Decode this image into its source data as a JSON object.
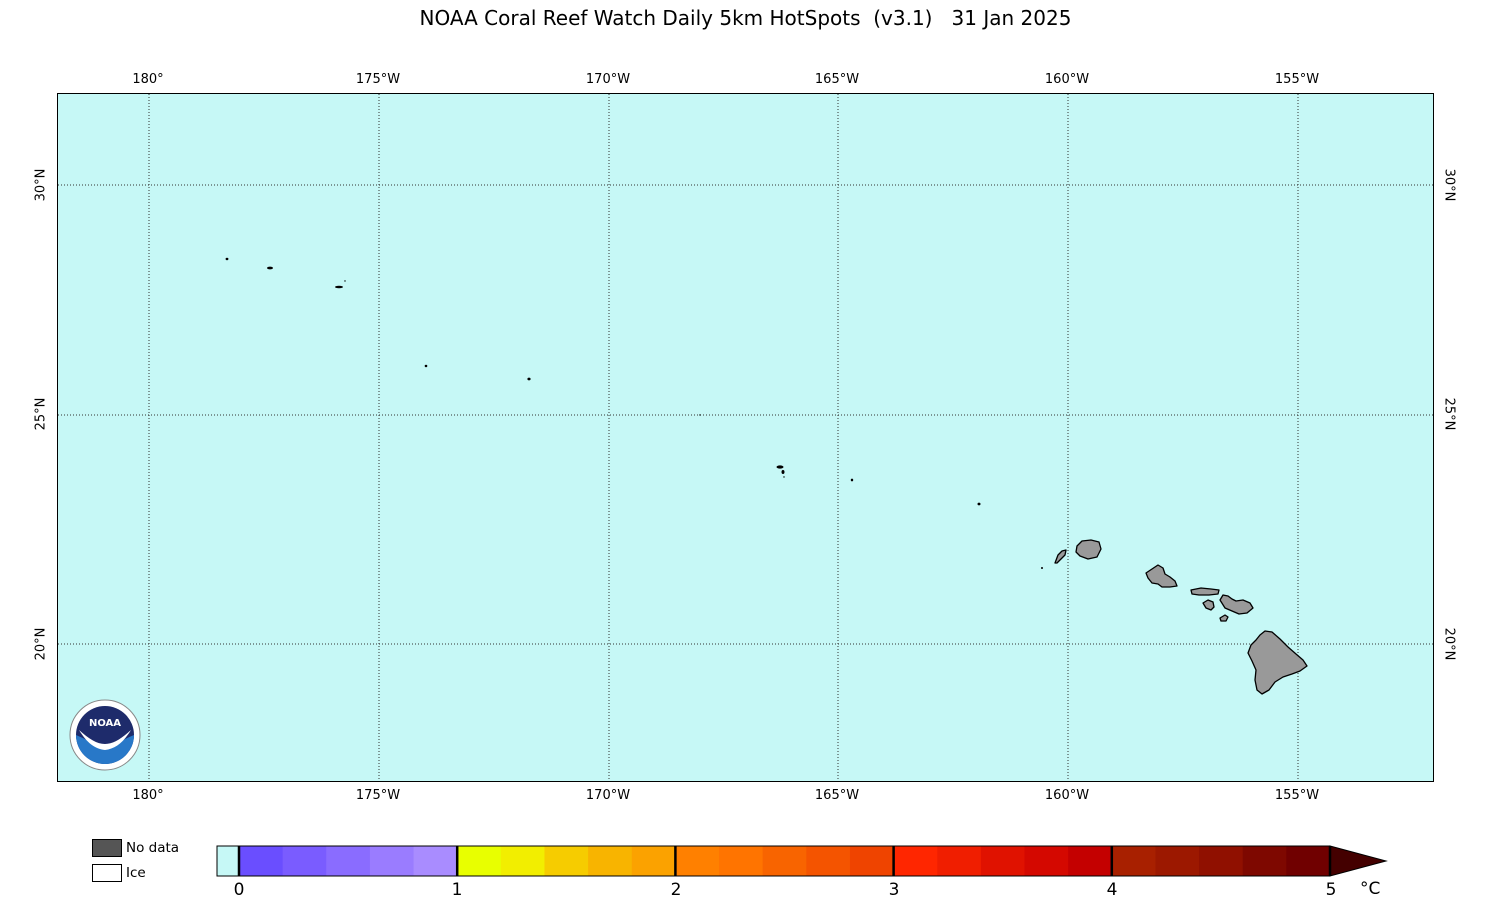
{
  "title": "NOAA Coral Reef Watch Daily 5km HotSpots  (v3.1)   31 Jan 2025",
  "map": {
    "lon_labels": [
      "180°",
      "175°W",
      "170°W",
      "165°W",
      "160°W",
      "155°W"
    ],
    "lat_labels": [
      "30°N",
      "25°N",
      "20°N"
    ],
    "ocean_color": "#c6f8f6",
    "land_color": "#999999",
    "gridlines": "dotted"
  },
  "logo": {
    "icon": "noaa-logo-icon",
    "text": "NOAA"
  },
  "legend": {
    "no_data_label": "No data",
    "ice_label": "Ice",
    "no_data_color": "#555555",
    "ice_color": "#ffffff"
  },
  "colorbar": {
    "ticks": [
      "0",
      "1",
      "2",
      "3",
      "4",
      "5"
    ],
    "unit": "°C",
    "below_zero_color": "#c6f8f6",
    "colors": [
      "#6a4eff",
      "#7a5cff",
      "#8a6cff",
      "#9a7cff",
      "#a98cff",
      "#e8ff00",
      "#f2ee00",
      "#f6cc00",
      "#f8b400",
      "#fba200",
      "#ff8000",
      "#ff7400",
      "#f86400",
      "#f45400",
      "#ef4400",
      "#ff2600",
      "#f01e00",
      "#e01200",
      "#d40800",
      "#c40000",
      "#a82000",
      "#9c1800",
      "#901000",
      "#7e0800",
      "#700000"
    ],
    "triangle_color": "#440000"
  }
}
